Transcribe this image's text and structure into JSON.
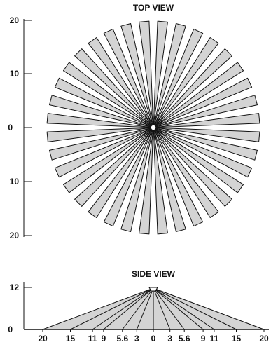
{
  "top_view": {
    "title": "TOP VIEW",
    "y_ticks": [
      "20",
      "10",
      "0",
      "10",
      "20"
    ],
    "zone_count": 36,
    "range": 20
  },
  "side_view": {
    "title": "SIDE VIEW",
    "y_ticks": [
      "12",
      "0"
    ],
    "x_ticks": [
      "20",
      "15",
      "11",
      "9",
      "5.6",
      "3",
      "0",
      "3",
      "5.6",
      "9",
      "11",
      "15",
      "20"
    ],
    "ray_ends": [
      -20,
      -15,
      -11,
      -9,
      -5.6,
      -3,
      0,
      3,
      5.6,
      9,
      11,
      15,
      20
    ],
    "mount_height": 12
  },
  "colors": {
    "zone_fill": "#d4d4d4",
    "stroke": "#111111",
    "background": "#ffffff"
  }
}
